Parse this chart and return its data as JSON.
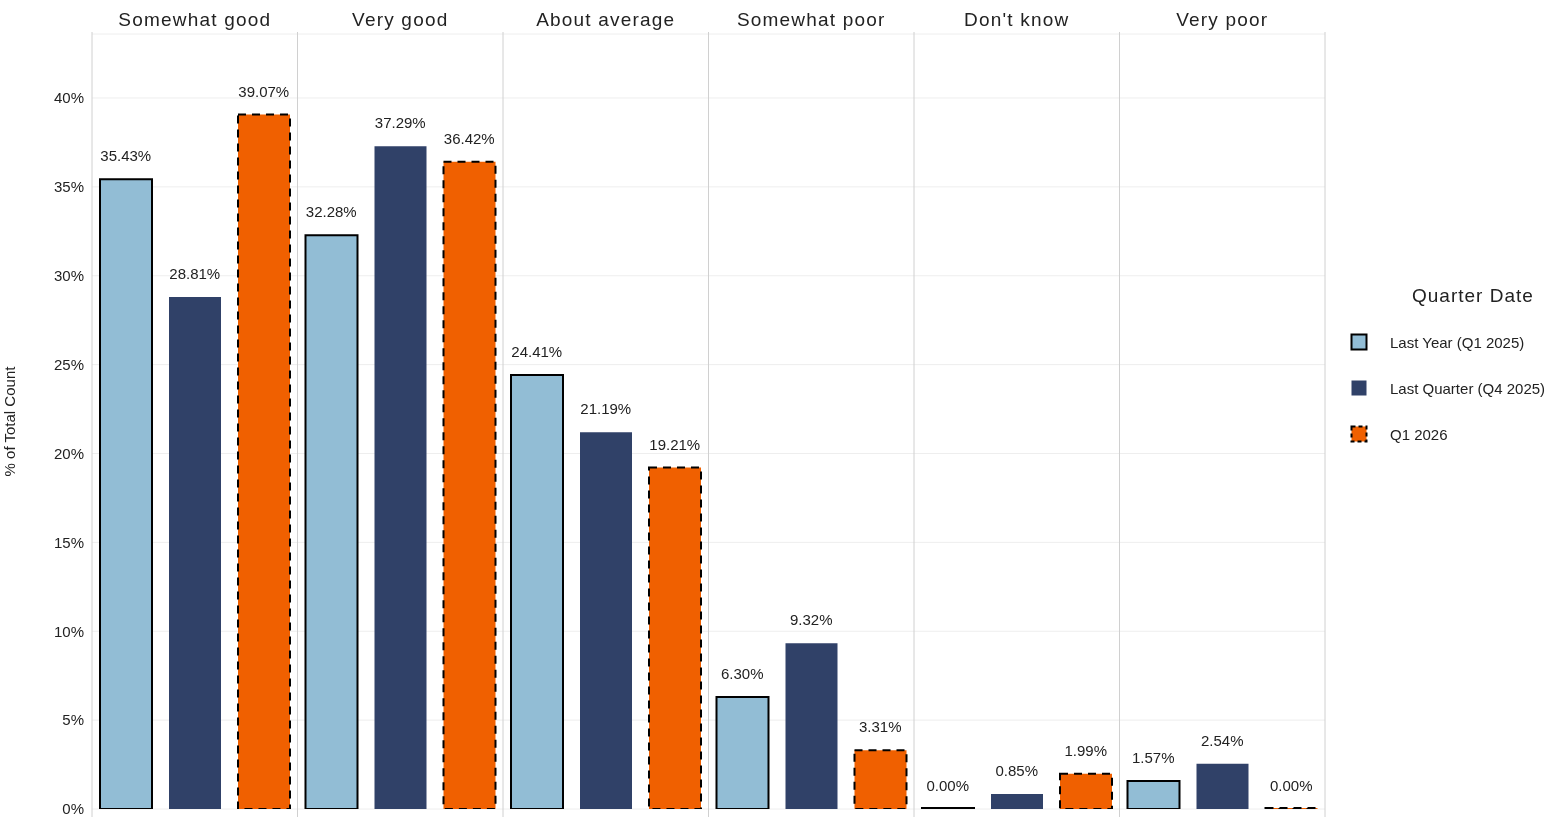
{
  "chart_data": {
    "type": "bar",
    "ylabel": "% of Total Count",
    "legend_title": "Quarter Date",
    "categories": [
      "Somewhat good",
      "Very good",
      "About average",
      "Somewhat poor",
      "Don't know",
      "Very poor"
    ],
    "series": [
      {
        "name": "Last Year (Q1 2025)",
        "color": "#92bdd5",
        "line_style": "solid",
        "values": [
          35.43,
          32.28,
          24.41,
          6.3,
          0,
          1.57
        ],
        "value_labels": [
          "35.43%",
          "32.28%",
          "24.41%",
          "6.30%",
          "0.00%",
          "1.57%"
        ]
      },
      {
        "name": "Last Quarter (Q4 2025)",
        "color": "#304168",
        "values": [
          28.81,
          37.29,
          21.19,
          9.32,
          0.85,
          2.54
        ],
        "value_labels": [
          "28.81%",
          "37.29%",
          "21.19%",
          "9.32%",
          "0.85%",
          "2.54%"
        ]
      },
      {
        "name": "Q1 2026",
        "color": "#f06000",
        "line_style": "dashed",
        "values": [
          39.07,
          36.42,
          19.21,
          3.31,
          1.99,
          0
        ],
        "value_labels": [
          "39.07%",
          "36.42%",
          "19.21%",
          "3.31%",
          "1.99%",
          "0.00%"
        ]
      }
    ],
    "ylim": [
      0,
      43.6
    ],
    "yticks": [
      {
        "value": 0,
        "label": "0%"
      },
      {
        "value": 5,
        "label": "5%"
      },
      {
        "value": 10,
        "label": "10%"
      },
      {
        "value": 15,
        "label": "15%"
      },
      {
        "value": 20,
        "label": "20%"
      },
      {
        "value": 25,
        "label": "25%"
      },
      {
        "value": 30,
        "label": "30%"
      },
      {
        "value": 35,
        "label": "35%"
      },
      {
        "value": 40,
        "label": "40%"
      }
    ],
    "grid": "y",
    "legend": "right"
  }
}
